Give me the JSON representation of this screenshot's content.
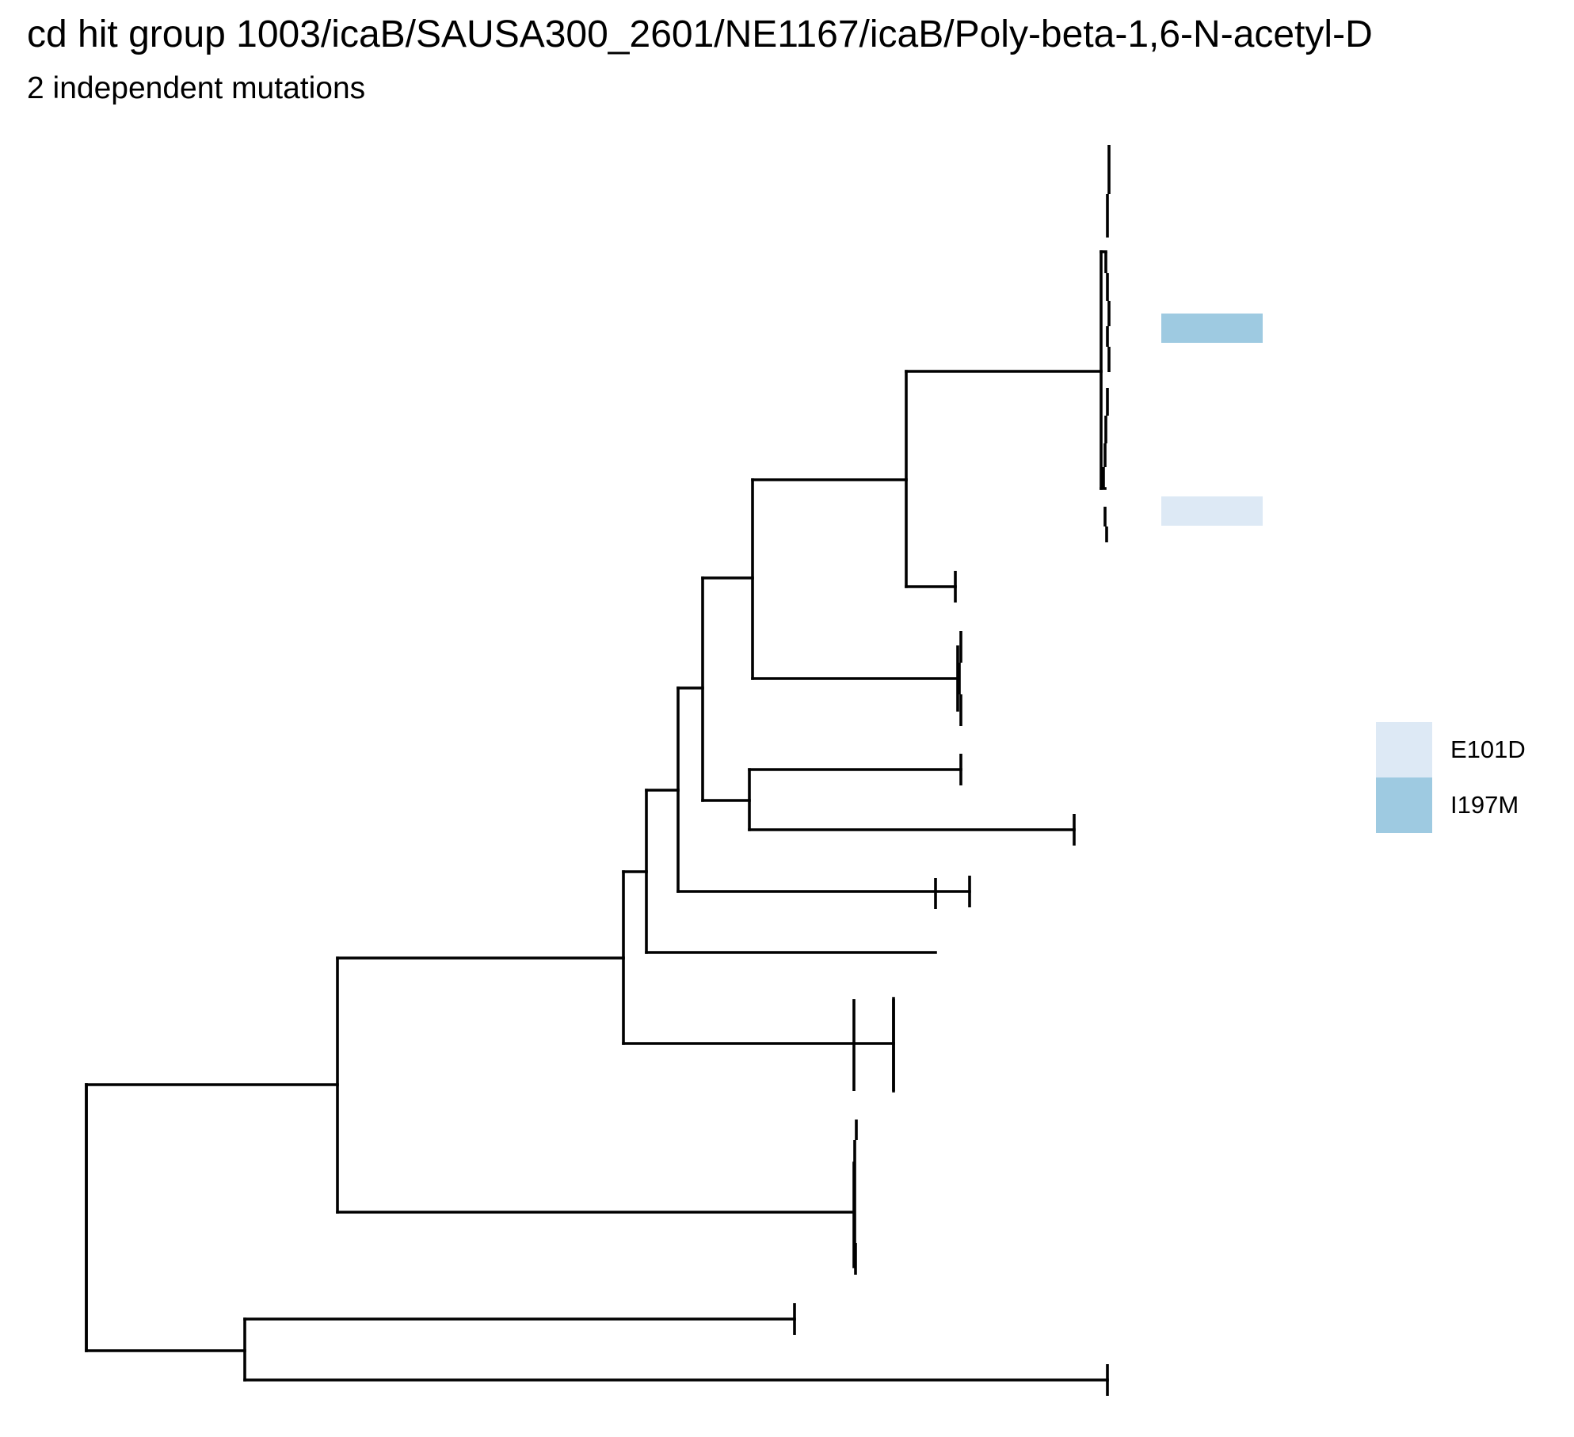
{
  "title": "cd hit group 1003/icaB/SAUSA300_2601/NE1167/icaB/Poly-beta-1,6-N-acetyl-D",
  "subtitle": "2 independent mutations",
  "legend": [
    {
      "label": "E101D",
      "color": "#dde9f5"
    },
    {
      "label": "I197M",
      "color": "#9ecae1"
    }
  ],
  "mutations": [
    {
      "mutation": "I197M",
      "color": "#9ecae1"
    },
    {
      "mutation": "E101D",
      "color": "#dde9f5"
    }
  ]
}
